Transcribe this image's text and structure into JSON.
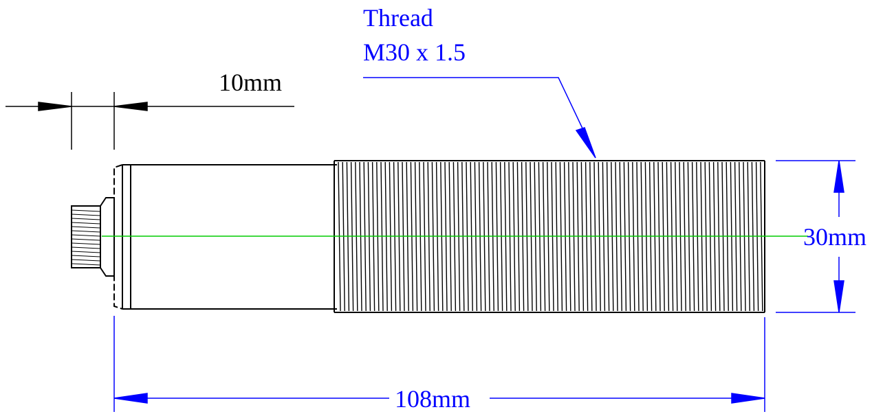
{
  "annotations": {
    "thread_label_line1": "Thread",
    "thread_label_line2": "M30 x 1.5",
    "width_label": "10mm",
    "diameter_label": "30mm",
    "length_label": "108mm"
  },
  "colors": {
    "outline": "#000000",
    "dimension": "#0000ff",
    "centerline": "#00cc00",
    "background": "#ffffff"
  }
}
